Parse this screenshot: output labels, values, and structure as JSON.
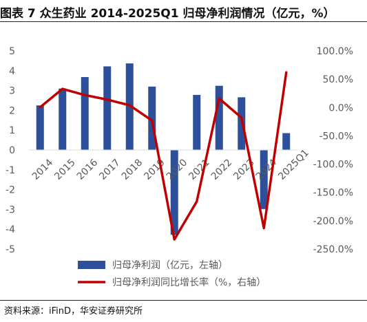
{
  "title": "图表 7 众生药业 2014-2025Q1 归母净利润情况（亿元，%）",
  "source": "资料来源：iFinD，华安证券研究所",
  "colors": {
    "bar": "#2e509a",
    "line": "#c00000",
    "text": "#595959",
    "axis": "#d9d9d9"
  },
  "chart_data": {
    "type": "bar",
    "categories": [
      "2014",
      "2015",
      "2016",
      "2017",
      "2018",
      "2019",
      "2020",
      "2021",
      "2022",
      "2023",
      "2024",
      "2025Q1"
    ],
    "series": [
      {
        "name": "归母净利润（亿元，左轴）",
        "type": "bar",
        "axis": "left",
        "values": [
          2.25,
          3.1,
          3.68,
          4.22,
          4.37,
          3.2,
          -4.28,
          2.78,
          3.24,
          2.66,
          -2.98,
          0.85
        ]
      },
      {
        "name": "归母净利润同比增长率（%，右轴）",
        "type": "line",
        "axis": "right",
        "values": [
          0.5,
          33.0,
          22.0,
          14.0,
          4.0,
          -23.0,
          -233.0,
          -166.0,
          16.0,
          -18.0,
          -213.0,
          62.0
        ]
      }
    ],
    "left_ylim": [
      -5,
      5
    ],
    "left_ticks": [
      "5",
      "4",
      "3",
      "2",
      "1",
      "0",
      "-1",
      "-2",
      "-3",
      "-4",
      "-5"
    ],
    "right_ylim": [
      -250,
      100
    ],
    "right_ticks": [
      "100.0%",
      "50.0%",
      "0.0%",
      "-50.0%",
      "-100.0%",
      "-150.0%",
      "-200.0%",
      "-250.0%"
    ],
    "grid": false,
    "legend_position": "bottom"
  }
}
